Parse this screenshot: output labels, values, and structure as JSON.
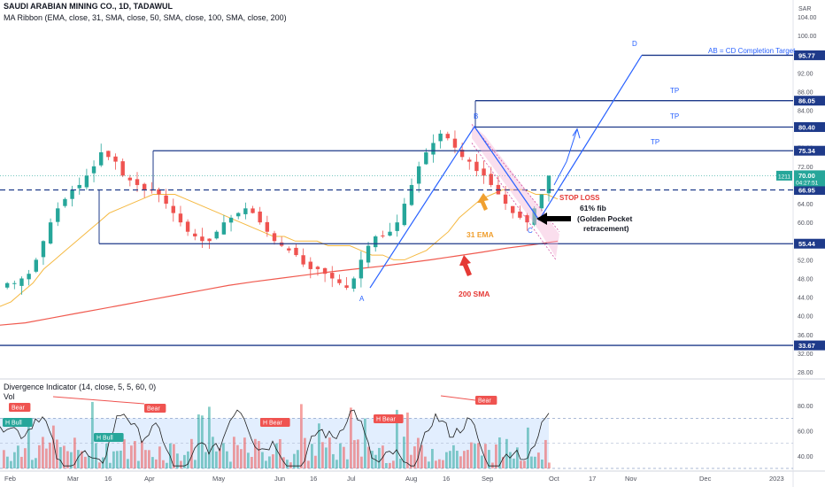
{
  "header": {
    "symbol_line": "SAUDI ARABIAN MINING CO., 1D, TADAWUL",
    "indicator_line": "MA Ribbon (EMA, close, 31, SMA, close, 50, SMA, close, 100, SMA, close, 200)",
    "currency": "SAR"
  },
  "price_axis": {
    "ticks": [
      "104.00",
      "100.00",
      "96.00",
      "92.00",
      "88.00",
      "84.00",
      "80.00",
      "76.00",
      "72.00",
      "68.00",
      "64.00",
      "60.00",
      "56.00",
      "52.00",
      "48.00",
      "44.00",
      "40.00",
      "36.00",
      "32.00",
      "28.00"
    ]
  },
  "price_tags": [
    {
      "label": "95.77",
      "value": 95.77
    },
    {
      "label": "86.05",
      "value": 86.05
    },
    {
      "label": "80.40",
      "value": 80.4
    },
    {
      "label": "75.34",
      "value": 75.34
    },
    {
      "label": "66.95",
      "value": 66.95
    },
    {
      "label": "55.44",
      "value": 55.44
    },
    {
      "label": "33.67",
      "value": 33.67
    }
  ],
  "last_price": {
    "label": "70.00",
    "countdown": "04:27:51",
    "volume": "1211",
    "value": 70.0
  },
  "time_axis": {
    "labels": [
      "Feb",
      "Mar",
      "16",
      "Apr",
      "May",
      "Jun",
      "16",
      "Jul",
      "Aug",
      "16",
      "Sep",
      "Oct",
      "17",
      "Nov",
      "Dec",
      "2023"
    ]
  },
  "annotations": {
    "cd_target": "AB = CD Completion Target",
    "tp1": "TP",
    "tp2": "TP",
    "tp3": "TP",
    "stop_loss": "STOP LOSS",
    "fib_line1": "61% fib",
    "fib_line2": "(Golden Pocket",
    "fib_line3": "retracement)",
    "ema_label": "31 EMA",
    "sma_label": "200 SMA",
    "point_a": "A",
    "point_b": "B",
    "point_c": "C",
    "point_d": "D"
  },
  "oscillator": {
    "title": "Divergence Indicator (14, close, 5, 5, 60, 0)",
    "vol_label": "Vol",
    "ticks": [
      "80.00",
      "60.00",
      "40.00"
    ],
    "badges": {
      "bear": "Bear",
      "h_bull": "H Bull",
      "h_bear": "H Bear"
    }
  },
  "colors": {
    "bull": "#26a69a",
    "bear": "#ef5350",
    "ema": "#f5b942",
    "sma": "#f05a4f",
    "level_line": "#1e3a8a",
    "pattern": "#2962ff",
    "rsi_band": "#dbeafe",
    "annotation_red": "#e53935",
    "annotation_orange": "#f0a030"
  },
  "chart_data": {
    "type": "candlestick",
    "title": "SAUDI ARABIAN MINING CO., 1D, TADAWUL",
    "ylim": [
      28,
      106
    ],
    "horizontal_levels": [
      95.77,
      86.05,
      80.4,
      75.34,
      66.95,
      55.44,
      33.67
    ],
    "abcd_points": {
      "A": 46.0,
      "B": 80.5,
      "C": 60.5,
      "D": 95.77
    },
    "series": [
      {
        "name": "31 EMA"
      },
      {
        "name": "200 SMA"
      }
    ],
    "price_path": [
      46.5,
      47,
      47,
      48,
      49,
      52,
      56,
      60,
      63,
      65,
      67,
      68,
      70,
      72,
      75,
      74,
      73,
      70,
      69,
      68,
      67,
      67,
      66,
      64,
      62,
      60,
      58,
      57,
      56,
      56,
      58,
      60,
      61,
      62,
      63,
      62,
      60,
      58,
      56,
      55,
      54,
      53,
      51,
      50,
      50,
      49,
      48,
      47,
      46,
      48,
      52,
      55,
      57,
      57,
      58,
      60,
      64,
      68,
      72,
      75,
      77,
      79,
      78,
      76,
      74,
      73,
      71,
      70,
      68,
      66,
      64,
      62,
      61,
      60,
      63,
      66,
      70
    ],
    "ema31_path": [
      42,
      43,
      45,
      47,
      50,
      52,
      54,
      56,
      58,
      60,
      62,
      63,
      64,
      65,
      66,
      66,
      66,
      65,
      64,
      63,
      62,
      61,
      60,
      59,
      58,
      57,
      57,
      56,
      56,
      56,
      55,
      55,
      55,
      54,
      53,
      53,
      52,
      52,
      53,
      54,
      56,
      58,
      61,
      63,
      65,
      66,
      67,
      67,
      67,
      66,
      66,
      65
    ],
    "sma200_path": [
      38,
      38.5,
      39.5,
      40.5,
      41.5,
      42.5,
      43.5,
      44.5,
      45.5,
      46.5,
      47.3,
      48,
      48.7,
      49.4,
      50,
      50.6,
      51.3,
      52,
      52.8,
      53.6,
      54.5,
      55.2,
      56
    ],
    "oscillator": {
      "ylim": [
        30,
        95
      ],
      "band": [
        30,
        70
      ]
    }
  }
}
